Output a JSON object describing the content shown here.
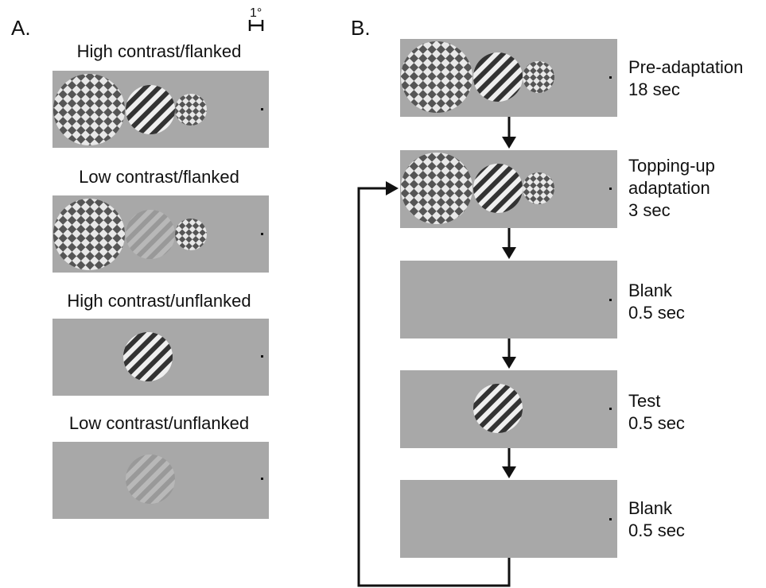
{
  "panel_a": {
    "letter": "A.",
    "scale_label": "1°",
    "conditions": [
      {
        "title": "High contrast/flanked",
        "flanked": true,
        "center_contrast": "high"
      },
      {
        "title": "Low contrast/flanked",
        "flanked": true,
        "center_contrast": "low"
      },
      {
        "title": "High contrast/unflanked",
        "flanked": false,
        "center_contrast": "high"
      },
      {
        "title": "Low contrast/unflanked",
        "flanked": false,
        "center_contrast": "low"
      }
    ]
  },
  "panel_b": {
    "letter": "B.",
    "stages": [
      {
        "name": "Pre-adaptation",
        "duration": "18 sec",
        "content": "flanked"
      },
      {
        "name": "Topping-up",
        "name2": "adaptation",
        "duration": "3 sec",
        "content": "flanked"
      },
      {
        "name": "Blank",
        "duration": "0.5 sec",
        "content": "blank"
      },
      {
        "name": "Test",
        "duration": "0.5 sec",
        "content": "grating"
      },
      {
        "name": "Blank",
        "duration": "0.5 sec",
        "content": "blank"
      }
    ]
  },
  "colors": {
    "panel_gray": "#a8a8a8",
    "checker_dark": "#555555",
    "checker_light": "#e8e8e8",
    "stripe_dark": "#333333",
    "stripe_light": "#efefef",
    "low_dark": "#999999",
    "low_light": "#b8b8b8",
    "arrow": "#111111"
  }
}
